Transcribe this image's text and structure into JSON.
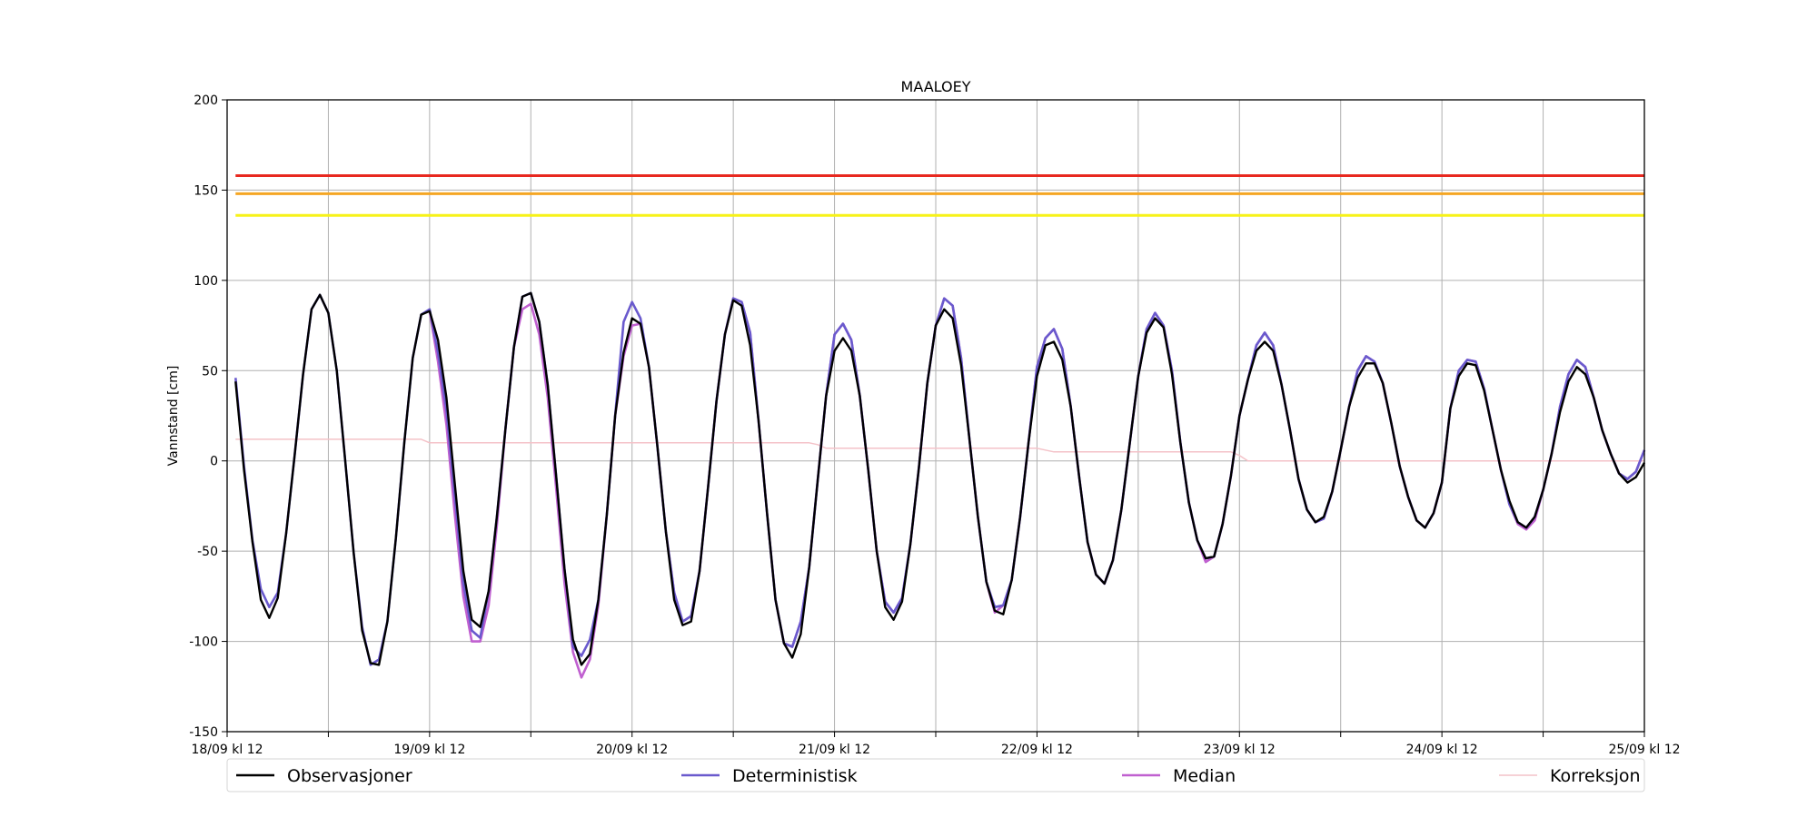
{
  "chart_data": {
    "type": "line",
    "title": "MAALOEY",
    "xlabel": "",
    "ylabel": "Vannstand [cm]",
    "ylim": [
      -150,
      200
    ],
    "yticks": [
      -150,
      -100,
      -50,
      0,
      50,
      100,
      150,
      200
    ],
    "xlim_hours": [
      0,
      168
    ],
    "x_unit": "hours after 18/09 kl 12",
    "xticks": [
      {
        "hour": 0,
        "label": "18/09 kl 12"
      },
      {
        "hour": 12,
        "label": ""
      },
      {
        "hour": 24,
        "label": "19/09 kl 12"
      },
      {
        "hour": 36,
        "label": ""
      },
      {
        "hour": 48,
        "label": "20/09 kl 12"
      },
      {
        "hour": 60,
        "label": ""
      },
      {
        "hour": 72,
        "label": "21/09 kl 12"
      },
      {
        "hour": 84,
        "label": ""
      },
      {
        "hour": 96,
        "label": "22/09 kl 12"
      },
      {
        "hour": 108,
        "label": ""
      },
      {
        "hour": 120,
        "label": "23/09 kl 12"
      },
      {
        "hour": 132,
        "label": ""
      },
      {
        "hour": 144,
        "label": "24/09 kl 12"
      },
      {
        "hour": 156,
        "label": ""
      },
      {
        "hour": 168,
        "label": "25/09 kl 12"
      }
    ],
    "grid": true,
    "legend_position": "bottom",
    "thresholds": [
      {
        "value": 158,
        "color": "#e8281f"
      },
      {
        "value": 148,
        "color": "#f5a623"
      },
      {
        "value": 136,
        "color": "#f7f218"
      }
    ],
    "series": [
      {
        "name": "Observasjoner",
        "color": "#000000",
        "x": [
          1,
          2,
          3,
          4,
          5,
          6,
          7,
          8,
          9,
          10,
          11,
          12,
          13,
          14,
          15,
          16,
          17,
          18,
          19,
          20,
          21,
          22,
          23,
          24,
          25,
          26,
          27,
          28,
          29,
          30,
          31,
          32,
          33,
          34,
          35,
          36,
          37,
          38,
          39,
          40,
          41,
          42,
          43,
          44,
          45,
          46,
          47,
          48,
          49,
          50,
          51,
          52,
          53,
          54,
          55,
          56,
          57,
          58,
          59,
          60,
          61,
          62,
          63,
          64,
          65,
          66,
          67,
          68,
          69,
          70,
          71,
          72,
          73,
          74,
          75,
          76,
          77,
          78,
          79,
          80,
          81,
          82,
          83,
          84,
          85,
          86,
          87,
          88,
          89,
          90,
          91,
          92,
          93,
          94,
          95,
          96,
          97,
          98,
          99,
          100,
          101,
          102,
          103,
          104,
          105,
          106,
          107,
          108,
          109,
          110,
          111,
          112,
          113,
          114,
          115,
          116,
          117,
          118,
          119,
          120,
          121,
          122,
          123,
          124,
          125,
          126,
          127,
          128,
          129,
          130,
          131,
          132,
          133,
          134,
          135,
          136,
          137,
          138,
          139,
          140,
          141,
          142,
          143,
          144,
          145,
          146,
          147,
          148,
          149,
          150,
          151,
          152,
          153,
          154,
          155,
          156,
          157,
          158,
          159,
          160,
          161,
          162,
          163,
          164,
          165,
          166,
          167,
          168
        ],
        "values": [
          44,
          -5,
          -45,
          -77,
          -87,
          -76,
          -40,
          3,
          48,
          84,
          92,
          82,
          50,
          0,
          -51,
          -94,
          -112,
          -113,
          -89,
          -43,
          10,
          57,
          81,
          83,
          67,
          35,
          -13,
          -61,
          -88,
          -92,
          -72,
          -30,
          18,
          63,
          91,
          93,
          77,
          42,
          -8,
          -60,
          -99,
          -113,
          -107,
          -77,
          -30,
          25,
          60,
          79,
          76,
          52,
          8,
          -39,
          -77,
          -91,
          -89,
          -61,
          -15,
          33,
          70,
          89,
          86,
          64,
          22,
          -29,
          -77,
          -101,
          -109,
          -96,
          -59,
          -11,
          36,
          61,
          68,
          61,
          36,
          -5,
          -50,
          -81,
          -88,
          -78,
          -46,
          -4,
          43,
          75,
          84,
          79,
          53,
          12,
          -31,
          -67,
          -83,
          -85,
          -66,
          -31,
          10,
          47,
          64,
          66,
          56,
          30,
          -9,
          -45,
          -63,
          -68,
          -55,
          -27,
          10,
          47,
          71,
          79,
          74,
          48,
          10,
          -23,
          -44,
          -54,
          -53,
          -35,
          -8,
          25,
          45,
          61,
          66,
          61,
          42,
          17,
          -10,
          -27,
          -34,
          -31,
          -17,
          6,
          30,
          46,
          54,
          54,
          43,
          21,
          -3,
          -20,
          -33,
          -37,
          -29,
          -12,
          29,
          47,
          54,
          53,
          39,
          17,
          -5,
          -22,
          -34,
          -37,
          -31,
          -16,
          4,
          27,
          44,
          52,
          48,
          35,
          17,
          4,
          -7,
          -12,
          -9,
          -1
        ]
      },
      {
        "name": "Deterministisk",
        "color": "#6a5acd",
        "x": [
          1,
          2,
          3,
          4,
          5,
          6,
          7,
          8,
          9,
          10,
          11,
          12,
          13,
          14,
          15,
          16,
          17,
          18,
          19,
          20,
          21,
          22,
          23,
          24,
          25,
          26,
          27,
          28,
          29,
          30,
          31,
          32,
          33,
          34,
          35,
          36,
          37,
          38,
          39,
          40,
          41,
          42,
          43,
          44,
          45,
          46,
          47,
          48,
          49,
          50,
          51,
          52,
          53,
          54,
          55,
          56,
          57,
          58,
          59,
          60,
          61,
          62,
          63,
          64,
          65,
          66,
          67,
          68,
          69,
          70,
          71,
          72,
          73,
          74,
          75,
          76,
          77,
          78,
          79,
          80,
          81,
          82,
          83,
          84,
          85,
          86,
          87,
          88,
          89,
          90,
          91,
          92,
          93,
          94,
          95,
          96,
          97,
          98,
          99,
          100,
          101,
          102,
          103,
          104,
          105,
          106,
          107,
          108,
          109,
          110,
          111,
          112,
          113,
          114,
          115,
          116,
          117,
          118,
          119,
          120,
          121,
          122,
          123,
          124,
          125,
          126,
          127,
          128,
          129,
          130,
          131,
          132,
          133,
          134,
          135,
          136,
          137,
          138,
          139,
          140,
          141,
          142,
          143,
          144,
          145,
          146,
          147,
          148,
          149,
          150,
          151,
          152,
          153,
          154,
          155,
          156,
          157,
          158,
          159,
          160,
          161,
          162,
          163,
          164,
          165,
          166,
          167,
          168
        ],
        "values": [
          46,
          -3,
          -44,
          -71,
          -81,
          -73,
          -40,
          3,
          48,
          84,
          92,
          82,
          50,
          0,
          -51,
          -92,
          -113,
          -110,
          -89,
          -43,
          10,
          57,
          81,
          84,
          60,
          28,
          -20,
          -68,
          -94,
          -98,
          -72,
          -30,
          18,
          63,
          91,
          93,
          77,
          42,
          -8,
          -60,
          -103,
          -108,
          -99,
          -77,
          -30,
          25,
          77,
          88,
          79,
          52,
          8,
          -39,
          -73,
          -89,
          -86,
          -61,
          -15,
          33,
          70,
          90,
          88,
          71,
          22,
          -29,
          -77,
          -101,
          -103,
          -89,
          -59,
          -11,
          36,
          70,
          76,
          67,
          36,
          -5,
          -50,
          -78,
          -84,
          -76,
          -46,
          -4,
          43,
          75,
          90,
          86,
          57,
          12,
          -31,
          -67,
          -81,
          -80,
          -66,
          -31,
          10,
          52,
          68,
          73,
          62,
          30,
          -9,
          -45,
          -63,
          -68,
          -55,
          -27,
          10,
          47,
          73,
          82,
          75,
          50,
          10,
          -23,
          -44,
          -54,
          -53,
          -35,
          -8,
          25,
          45,
          64,
          71,
          64,
          42,
          17,
          -10,
          -27,
          -34,
          -32,
          -17,
          6,
          30,
          50,
          58,
          55,
          43,
          21,
          -3,
          -20,
          -33,
          -37,
          -29,
          -12,
          29,
          50,
          56,
          55,
          40,
          17,
          -5,
          -24,
          -34,
          -37,
          -31,
          -16,
          4,
          30,
          48,
          56,
          52,
          35,
          17,
          4,
          -7,
          -10,
          -6,
          6
        ]
      },
      {
        "name": "Median",
        "color": "#c060d0",
        "x": [
          24,
          25,
          26,
          27,
          28,
          29,
          30,
          31,
          32,
          33,
          34,
          35,
          36,
          37,
          38,
          39,
          40,
          41,
          42,
          43,
          44,
          45,
          46,
          47,
          48,
          49,
          50,
          51,
          52,
          53,
          54,
          55,
          56,
          57,
          58,
          59,
          60,
          61,
          62,
          63,
          64,
          65,
          66,
          67,
          68,
          69,
          70,
          71,
          72,
          73,
          74,
          75,
          76,
          77,
          78,
          79,
          80,
          81,
          82,
          83,
          84,
          85,
          86,
          87,
          88,
          89,
          90,
          91,
          92,
          93,
          94,
          95,
          96,
          97,
          98,
          99,
          100,
          101,
          102,
          103,
          104,
          105,
          106,
          107,
          108,
          109,
          110,
          111,
          112,
          113,
          114,
          115,
          116,
          117,
          118,
          119,
          120,
          121,
          122,
          123,
          124,
          125,
          126,
          127,
          128,
          129,
          130,
          131,
          132,
          133,
          134,
          135,
          136,
          137,
          138,
          139,
          140,
          141,
          142,
          143,
          144,
          145,
          146,
          147,
          148,
          149,
          150,
          151,
          152,
          153,
          154,
          155,
          156,
          157,
          158,
          159,
          160,
          161,
          162,
          163,
          164,
          165,
          166,
          167,
          168
        ],
        "values": [
          83,
          55,
          20,
          -30,
          -75,
          -100,
          -100,
          -80,
          -35,
          18,
          63,
          84,
          87,
          70,
          35,
          -15,
          -68,
          -106,
          -120,
          -110,
          -80,
          -30,
          25,
          58,
          75,
          76,
          52,
          8,
          -39,
          -73,
          -89,
          -86,
          -61,
          -15,
          33,
          70,
          90,
          88,
          71,
          22,
          -29,
          -77,
          -101,
          -103,
          -89,
          -59,
          -11,
          36,
          70,
          76,
          67,
          36,
          -5,
          -50,
          -78,
          -84,
          -76,
          -46,
          -4,
          43,
          75,
          90,
          86,
          57,
          12,
          -31,
          -67,
          -84,
          -80,
          -66,
          -31,
          10,
          52,
          68,
          73,
          62,
          30,
          -9,
          -45,
          -63,
          -68,
          -55,
          -27,
          10,
          47,
          73,
          82,
          75,
          50,
          10,
          -23,
          -44,
          -56,
          -53,
          -35,
          -8,
          25,
          45,
          64,
          71,
          64,
          42,
          17,
          -10,
          -27,
          -34,
          -32,
          -17,
          6,
          30,
          50,
          58,
          55,
          43,
          21,
          -3,
          -20,
          -33,
          -37,
          -29,
          -12,
          29,
          50,
          56,
          55,
          40,
          17,
          -5,
          -24,
          -35,
          -38,
          -33,
          -16,
          4,
          30,
          48,
          56,
          52,
          35,
          17,
          4,
          -7,
          -10,
          -6,
          6
        ]
      },
      {
        "name": "Korreksjon",
        "color": "#f4c2c8",
        "x": [
          1,
          23,
          24,
          25,
          69,
          70,
          71,
          96,
          97,
          98,
          119,
          120,
          121,
          168
        ],
        "values": [
          12,
          12,
          10,
          10,
          10,
          9,
          7,
          7,
          6,
          5,
          5,
          3,
          0,
          0
        ]
      }
    ]
  }
}
